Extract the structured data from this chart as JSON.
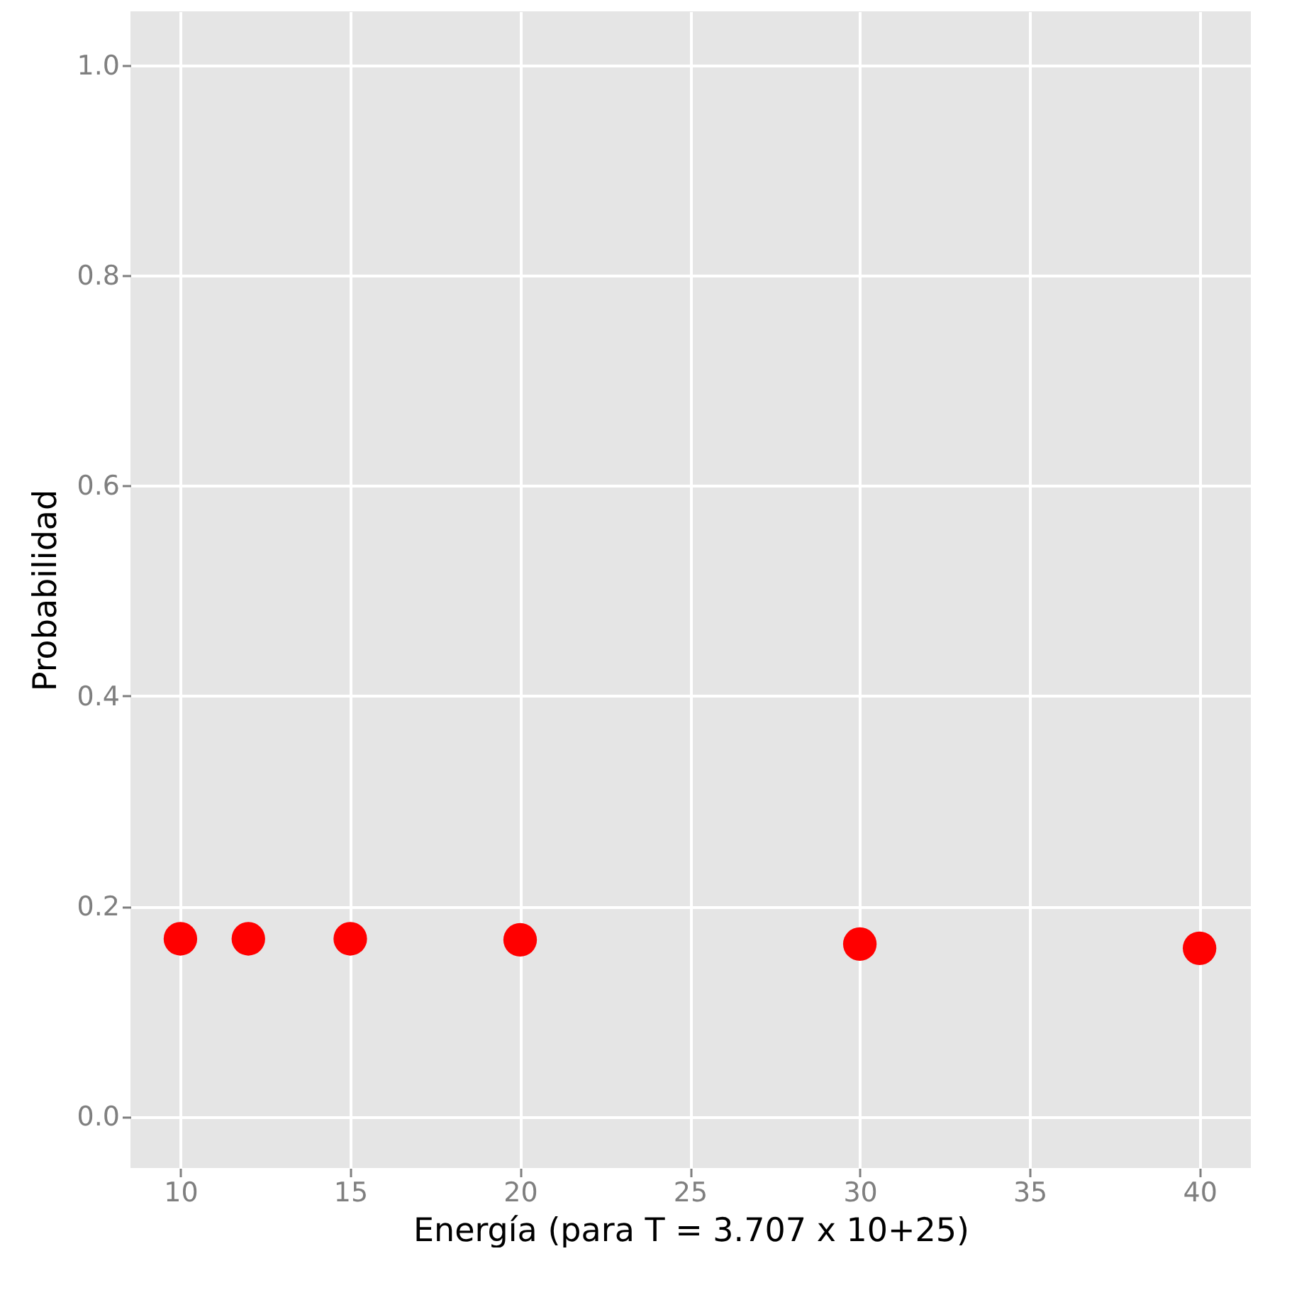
{
  "chart_data": {
    "type": "scatter",
    "xlabel": "Energía (para T =  3.707 x 10+25)",
    "ylabel": "Probabilidad",
    "x": [
      10,
      12,
      15,
      20,
      30,
      40
    ],
    "series": [
      {
        "color": "#ff0000",
        "values": [
          0.169,
          0.169,
          0.169,
          0.168,
          0.164,
          0.16
        ]
      }
    ],
    "xlim": [
      8.53,
      41.51
    ],
    "ylim": [
      -0.049,
      1.051
    ],
    "xticks": [
      10,
      15,
      20,
      25,
      30,
      35,
      40
    ],
    "yticks": [
      {
        "value": 0,
        "label": "0.0"
      },
      0.2,
      0.4,
      0.6,
      0.8,
      {
        "value": 1,
        "label": "1.0"
      }
    ],
    "grid": true
  }
}
